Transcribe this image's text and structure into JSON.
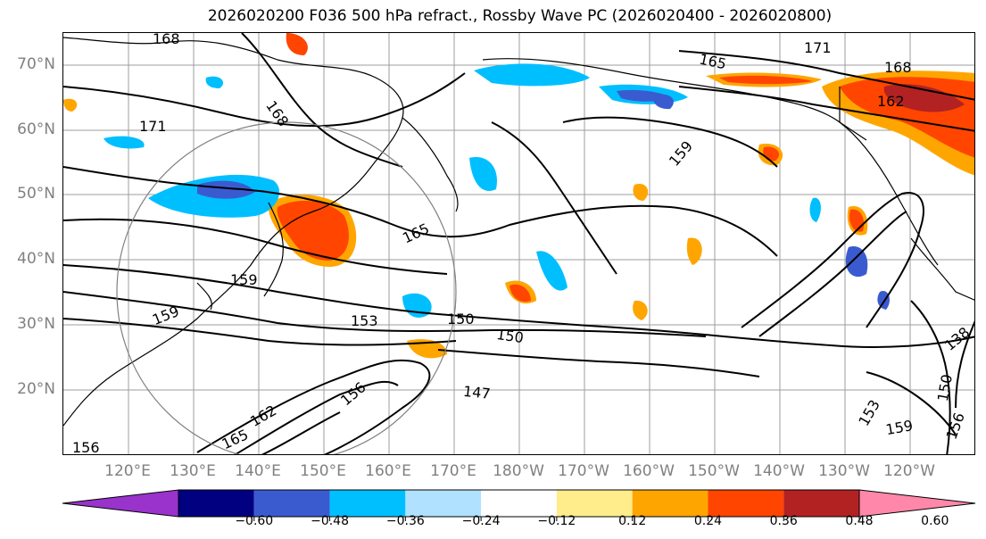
{
  "title": "2026020200 F036 500 hPa refract., Rossby Wave PC (2026020400 - 2026020800)",
  "lat_labels": [
    "70°N",
    "60°N",
    "50°N",
    "40°N",
    "30°N",
    "20°N"
  ],
  "lon_labels": [
    "120°E",
    "130°E",
    "140°E",
    "150°E",
    "160°E",
    "170°E",
    "180°W",
    "170°W",
    "160°W",
    "150°W",
    "140°W",
    "130°W",
    "120°W"
  ],
  "colorbar": {
    "colors": [
      "#9933cc",
      "#000080",
      "#3a5bd0",
      "#00bfff",
      "#b0e2ff",
      "#ffffff",
      "#ffec8b",
      "#ffa500",
      "#ff4500",
      "#b22222",
      "#ff88aa"
    ],
    "ticks": [
      "−0.60",
      "−0.48",
      "−0.36",
      "−0.24",
      "−0.12",
      "0.12",
      "0.24",
      "0.36",
      "0.48",
      "0.60"
    ]
  },
  "contour_labels": [
    "168",
    "171",
    "168",
    "165",
    "171",
    "168",
    "162",
    "159",
    "165",
    "159",
    "159",
    "153",
    "150",
    "150",
    "147",
    "156",
    "162",
    "165",
    "156",
    "153",
    "159",
    "156",
    "150",
    "138"
  ]
}
